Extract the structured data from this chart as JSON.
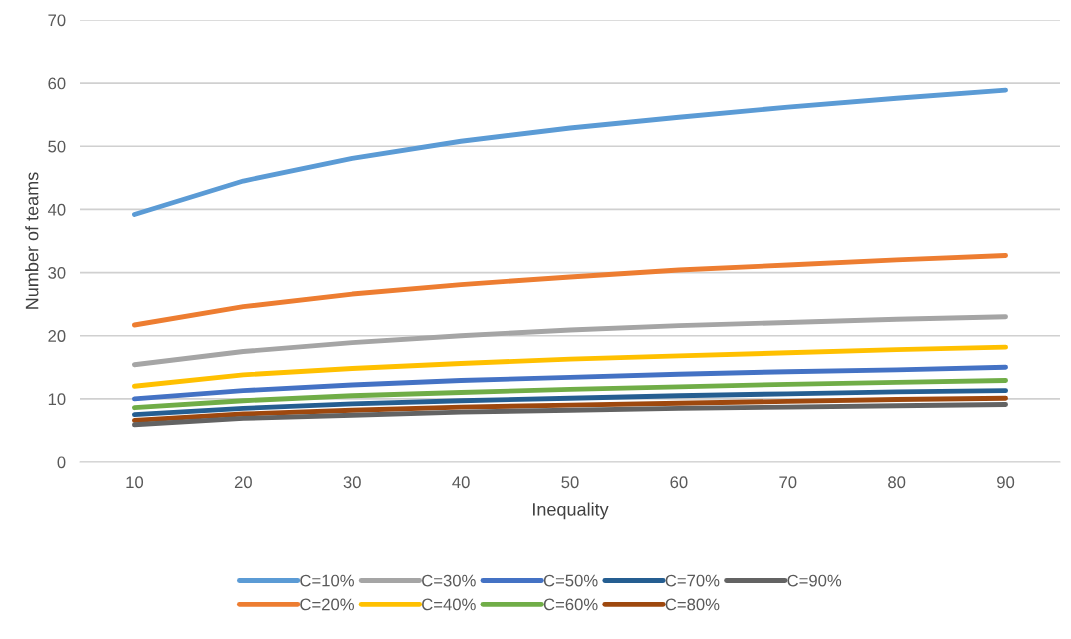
{
  "chart_data": {
    "type": "line",
    "xlabel": "Inequality",
    "ylabel": "Number of teams",
    "categories": [
      "10",
      "20",
      "30",
      "40",
      "50",
      "60",
      "70",
      "80",
      "90"
    ],
    "ylim": [
      0,
      70
    ],
    "yticks": [
      0,
      10,
      20,
      30,
      40,
      50,
      60,
      70
    ],
    "grid": "y",
    "legend": "bottom",
    "marker": "none",
    "line_style": "solid",
    "series": [
      {
        "name": "C=10%",
        "color": "#5b9bd5",
        "values": [
          39.2,
          44.5,
          48.1,
          50.8,
          52.9,
          54.6,
          56.2,
          57.6,
          58.9
        ]
      },
      {
        "name": "C=20%",
        "color": "#ed7d31",
        "values": [
          21.7,
          24.6,
          26.6,
          28.1,
          29.3,
          30.4,
          31.2,
          32.0,
          32.7
        ]
      },
      {
        "name": "C=30%",
        "color": "#a5a5a5",
        "values": [
          15.4,
          17.5,
          18.9,
          20.0,
          20.9,
          21.6,
          22.1,
          22.6,
          23.0
        ]
      },
      {
        "name": "C=40%",
        "color": "#ffc000",
        "values": [
          12.0,
          13.8,
          14.8,
          15.6,
          16.3,
          16.8,
          17.3,
          17.8,
          18.2
        ]
      },
      {
        "name": "C=50%",
        "color": "#4472c4",
        "values": [
          10.0,
          11.3,
          12.2,
          12.9,
          13.4,
          13.9,
          14.3,
          14.6,
          15.0
        ]
      },
      {
        "name": "C=60%",
        "color": "#70ad47",
        "values": [
          8.6,
          9.7,
          10.5,
          11.0,
          11.5,
          11.9,
          12.3,
          12.6,
          12.9
        ]
      },
      {
        "name": "C=70%",
        "color": "#255e91",
        "values": [
          7.5,
          8.5,
          9.2,
          9.7,
          10.1,
          10.5,
          10.8,
          11.1,
          11.3
        ]
      },
      {
        "name": "C=80%",
        "color": "#9e480e",
        "values": [
          6.6,
          7.6,
          8.2,
          8.7,
          9.0,
          9.3,
          9.6,
          9.9,
          10.1
        ]
      },
      {
        "name": "C=90%",
        "color": "#636363",
        "values": [
          5.9,
          6.9,
          7.4,
          7.9,
          8.2,
          8.5,
          8.7,
          8.9,
          9.1
        ]
      }
    ]
  }
}
